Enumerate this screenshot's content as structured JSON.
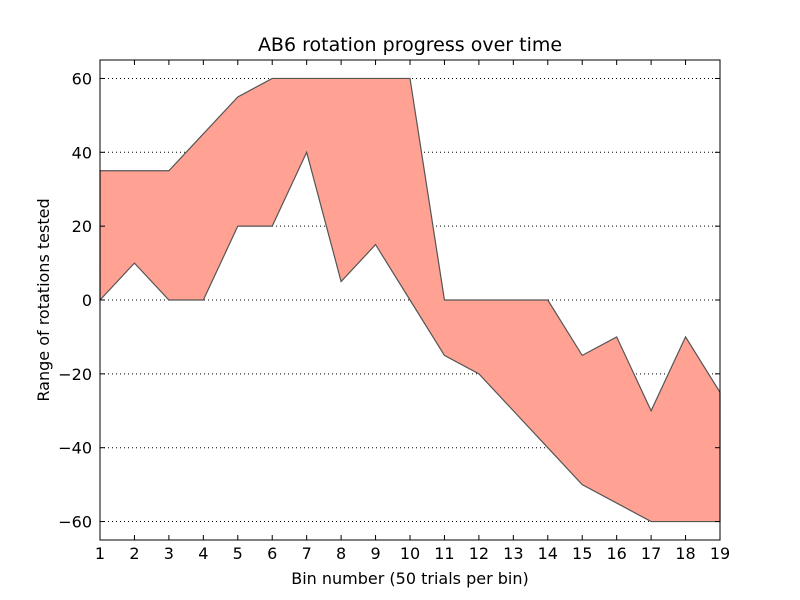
{
  "chart_data": {
    "type": "area",
    "title": "AB6 rotation progress over time",
    "xlabel": "Bin number (50 trials per bin)",
    "ylabel": "Range of rotations tested",
    "xlim": [
      1,
      19
    ],
    "ylim": [
      -65,
      65
    ],
    "xticks": [
      1,
      2,
      3,
      4,
      5,
      6,
      7,
      8,
      9,
      10,
      11,
      12,
      13,
      14,
      15,
      16,
      17,
      18,
      19
    ],
    "yticks": [
      -60,
      -40,
      -20,
      0,
      20,
      40,
      60
    ],
    "ytick_labels": [
      "−60",
      "−40",
      "−20",
      "0",
      "20",
      "40",
      "60"
    ],
    "grid": "horizontal dotted",
    "fill_color": "#ffa293",
    "edge_color": "#555555",
    "x": [
      1,
      2,
      3,
      4,
      5,
      6,
      7,
      8,
      9,
      10,
      11,
      12,
      13,
      14,
      15,
      16,
      17,
      18,
      19
    ],
    "series": [
      {
        "values": [
          35,
          35,
          35,
          45,
          55,
          60,
          60,
          60,
          60,
          60,
          0,
          0,
          0,
          0,
          -15,
          -10,
          -30,
          -10,
          -25
        ]
      },
      {
        "values": [
          0,
          10,
          0,
          0,
          20,
          20,
          40,
          5,
          15,
          0,
          -15,
          -20,
          -30,
          -40,
          -50,
          -55,
          -60,
          -60,
          -60
        ]
      }
    ]
  }
}
